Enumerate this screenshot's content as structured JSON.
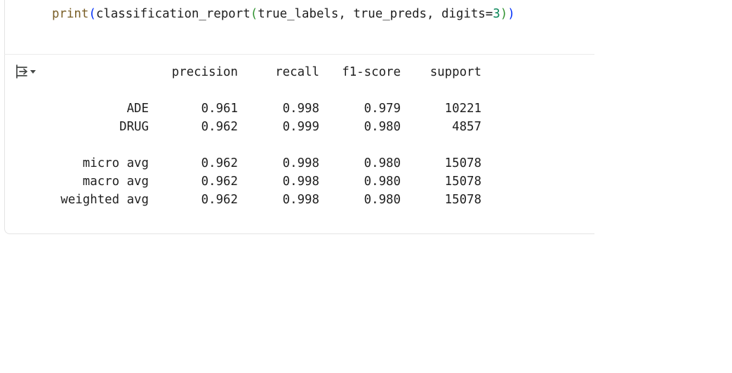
{
  "code": {
    "fn": "print",
    "open_paren": "(",
    "inner_fn": "classification_report",
    "inner_open": "(",
    "args_text": "true_labels, true_preds, digits=",
    "digits_value": "3",
    "inner_close": ")",
    "close_paren": ")"
  },
  "output": {
    "headers": [
      "precision",
      "recall",
      "f1-score",
      "support"
    ],
    "rows": [
      {
        "label": "ADE",
        "precision": "0.961",
        "recall": "0.998",
        "f1": "0.979",
        "support": "10221"
      },
      {
        "label": "DRUG",
        "precision": "0.962",
        "recall": "0.999",
        "f1": "0.980",
        "support": "4857"
      },
      {
        "label": "micro avg",
        "precision": "0.962",
        "recall": "0.998",
        "f1": "0.980",
        "support": "15078"
      },
      {
        "label": "macro avg",
        "precision": "0.962",
        "recall": "0.998",
        "f1": "0.980",
        "support": "15078"
      },
      {
        "label": "weighted avg",
        "precision": "0.962",
        "recall": "0.998",
        "f1": "0.980",
        "support": "15078"
      }
    ]
  },
  "icons": {
    "output_toggle": "output-toggle-icon"
  }
}
